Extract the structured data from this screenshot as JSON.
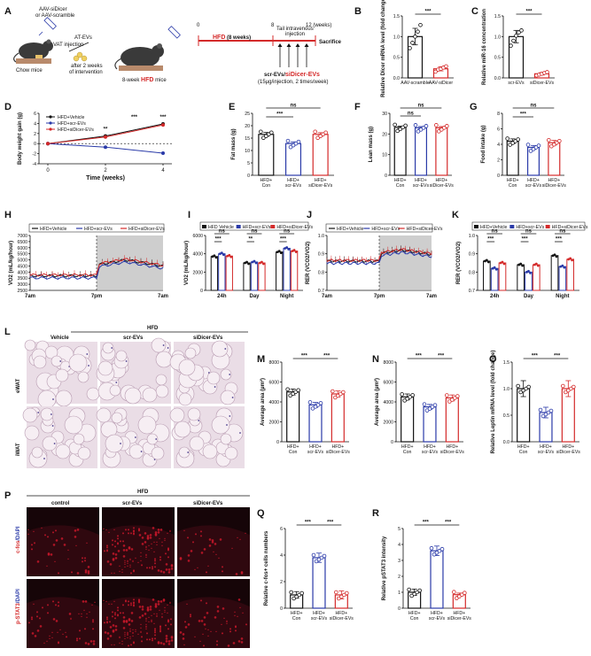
{
  "panel_letters": [
    "A",
    "B",
    "C",
    "D",
    "E",
    "F",
    "G",
    "H",
    "I",
    "J",
    "K",
    "L",
    "M",
    "N",
    "O",
    "P",
    "Q",
    "R"
  ],
  "colors": {
    "black": "#111111",
    "blue": "#2a3aa8",
    "red": "#d42a2a",
    "grey": "#bdbdbd",
    "tissue": "#eadde6",
    "fluor_red": "#c8182a"
  },
  "panel_a": {
    "vector_text": "AAV-siDicer or AAV-scramble",
    "vector_line1": "AAV-siDicer",
    "vector_line2": "or AAV-scramble",
    "vat_injection": "VAT injection",
    "at_evs": "AT-EVs",
    "after_weeks_line1": "after 2 weeks",
    "after_weeks_line2": "of intervention",
    "chow_mice": "Chow mice",
    "hfd_mice_prefix": "8-week ",
    "hfd_mice_hfd": "HFD",
    "hfd_mice_suffix": " mice",
    "timeline_start": "0",
    "timeline_mid": "8",
    "timeline_end": "12 (weeks)",
    "hfd_label_hfd": "HFD",
    "hfd_label_rest": " (8 weeks)",
    "tail_line1": "Tail intravenous",
    "tail_line2": "injection",
    "sacrifice": "Sacrifice",
    "groups_black": "scr-EVs/",
    "groups_red": "siDicer-EVs",
    "dose": "(15µg/injection, 2 times/week)"
  },
  "panel_p": {
    "hfd_title": "HFD",
    "col_labels": [
      "control",
      "scr-EVs",
      "siDicer-EVs"
    ],
    "row1_black": "c-fos",
    "row1_blue": "/DAPI",
    "row2_black": "p-STAT3",
    "row2_blue": "/DAPI"
  },
  "panel_l": {
    "hfd_title": "HFD",
    "col_labels": [
      "Vehicle",
      "scr-EVs",
      "siDicer-EVs"
    ],
    "row_labels": [
      "eWAT",
      "iWAT"
    ]
  },
  "chart_data": [
    {
      "panel": "B",
      "type": "bar",
      "ylabel": "Relative Dicer mRNA level (fold change)",
      "categories": [
        "AAV-scramble",
        "AAV-siDicer"
      ],
      "values": [
        1.0,
        0.22
      ],
      "errors": [
        0.2,
        0.05
      ],
      "points": [
        [
          0.72,
          0.85,
          1.0,
          1.12,
          1.28
        ],
        [
          0.15,
          0.2,
          0.22,
          0.25,
          0.28
        ]
      ],
      "colors": [
        "#111111",
        "#d42a2a"
      ],
      "ylim": [
        0,
        1.5
      ],
      "yticks": [
        "0.0",
        "0.5",
        "1.0",
        "1.5"
      ],
      "significance": [
        "***"
      ]
    },
    {
      "panel": "C",
      "type": "bar",
      "ylabel": "Relative miR-16 concentration",
      "categories": [
        "scr-EVs",
        "siDicer-EVs"
      ],
      "values": [
        1.0,
        0.1
      ],
      "errors": [
        0.15,
        0.03
      ],
      "points": [
        [
          0.78,
          0.9,
          1.02,
          1.1,
          1.15
        ],
        [
          0.06,
          0.08,
          0.1,
          0.12,
          0.14
        ]
      ],
      "colors": [
        "#111111",
        "#d42a2a"
      ],
      "ylim": [
        0,
        1.5
      ],
      "yticks": [
        "0.0",
        "0.5",
        "1.0",
        "1.5"
      ],
      "significance": [
        "***"
      ]
    },
    {
      "panel": "D",
      "type": "line",
      "xlabel": "Time (weeks)",
      "ylabel": "Body weight gain (g)",
      "x": [
        0,
        2,
        4
      ],
      "xticks": [
        "0",
        "2",
        "4"
      ],
      "ylim": [
        -4,
        6
      ],
      "yticks": [
        "-4",
        "-2",
        "0",
        "2",
        "4",
        "6"
      ],
      "series": [
        {
          "name": "HFD+Vehicle",
          "values": [
            0,
            1.5,
            3.9
          ],
          "color": "#111111"
        },
        {
          "name": "HFD+scr-EVs",
          "values": [
            0,
            -0.7,
            -1.9
          ],
          "color": "#2a3aa8"
        },
        {
          "name": "HFD+siDicer-EVs",
          "values": [
            0,
            1.3,
            3.7
          ],
          "color": "#d42a2a"
        }
      ],
      "significance": [
        "**",
        "***",
        "***"
      ]
    },
    {
      "panel": "E",
      "type": "bar",
      "ylabel": "Fat mass (g)",
      "categories": [
        "HFD+ Con",
        "HFD+ scr-EVs",
        "HFD+ siDicer-EVs"
      ],
      "values": [
        16.5,
        12.8,
        16.5
      ],
      "errors": [
        0.8,
        0.7,
        0.7
      ],
      "colors": [
        "#111111",
        "#2a3aa8",
        "#d42a2a"
      ],
      "ylim": [
        0,
        25
      ],
      "yticks": [
        "0",
        "5",
        "10",
        "15",
        "20",
        "25"
      ],
      "significance": [
        "***",
        "***",
        "ns"
      ]
    },
    {
      "panel": "F",
      "type": "bar",
      "ylabel": "Lean mass (g)",
      "categories": [
        "HFD+ Con",
        "HFD+ scr-EVs",
        "HFD+ siDicer-EVs"
      ],
      "values": [
        23.2,
        23.0,
        23.0
      ],
      "errors": [
        0.6,
        0.6,
        0.6
      ],
      "colors": [
        "#111111",
        "#2a3aa8",
        "#d42a2a"
      ],
      "ylim": [
        0,
        30
      ],
      "yticks": [
        "0",
        "10",
        "20",
        "30"
      ],
      "significance": [
        "ns",
        "ns"
      ]
    },
    {
      "panel": "G",
      "type": "bar",
      "ylabel": "Food intake (g)",
      "categories": [
        "HFD+ Con",
        "HFD+ scr-EVs",
        "HFD+ siDicer-EVs"
      ],
      "values": [
        4.4,
        3.6,
        4.2
      ],
      "errors": [
        0.3,
        0.25,
        0.3
      ],
      "colors": [
        "#111111",
        "#2a3aa8",
        "#d42a2a"
      ],
      "ylim": [
        0,
        8
      ],
      "yticks": [
        "0",
        "2",
        "4",
        "6",
        "8"
      ],
      "significance": [
        "***",
        "***",
        "ns"
      ]
    },
    {
      "panel": "H",
      "type": "line",
      "ylabel": "VO2 (mL/kg/hour)",
      "xticks": [
        "7am",
        "7pm",
        "7am"
      ],
      "ylim": [
        2500,
        7000
      ],
      "yticks": [
        "2500",
        "3000",
        "3500",
        "4000",
        "4500",
        "5000",
        "5500",
        "6000",
        "6500",
        "7000"
      ],
      "dark_phase": "7pm-7am",
      "series": [
        {
          "name": "HFD+Vehicle",
          "color": "#111111"
        },
        {
          "name": "HFD+scr-EVs",
          "color": "#2a3aa8"
        },
        {
          "name": "HFD+siDicer-EVs",
          "color": "#d42a2a"
        }
      ]
    },
    {
      "panel": "I",
      "type": "bar",
      "ylabel": "VO2 (mL/kg/hour)",
      "categories": [
        "24h",
        "Day",
        "Night"
      ],
      "series": [
        {
          "name": "HFD Vehicle",
          "values": [
            3700,
            3000,
            4200
          ],
          "color": "#111111"
        },
        {
          "name": "HFD+scr-EVs",
          "values": [
            4000,
            3100,
            4600
          ],
          "color": "#2a3aa8"
        },
        {
          "name": "HFD+siDicer-EVs",
          "values": [
            3750,
            3000,
            4300
          ],
          "color": "#d42a2a"
        }
      ],
      "ylim": [
        0,
        6000
      ],
      "yticks": [
        "0",
        "2000",
        "4000",
        "6000"
      ],
      "significance": [
        "***",
        "ns",
        "**",
        "ns",
        "***",
        "ns"
      ]
    },
    {
      "panel": "J",
      "type": "line",
      "ylabel": "RER (VCO2/VO2)",
      "xticks": [
        "7am",
        "7pm",
        "7am"
      ],
      "ylim": [
        0.7,
        1.0
      ],
      "yticks": [
        "0.7",
        "0.8",
        "0.9",
        "1.0"
      ],
      "dark_phase": "7pm-7am",
      "series": [
        {
          "name": "HFD+Vehicle",
          "color": "#111111"
        },
        {
          "name": "HFD+scr-EVs",
          "color": "#2a3aa8"
        },
        {
          "name": "HFD+siDicer-EVs",
          "color": "#d42a2a"
        }
      ]
    },
    {
      "panel": "K",
      "type": "bar",
      "ylabel": "RER (VCO2/VO2)",
      "categories": [
        "24h",
        "Day",
        "Night"
      ],
      "series": [
        {
          "name": "HFD+Vehicle",
          "values": [
            0.86,
            0.84,
            0.89
          ],
          "color": "#111111"
        },
        {
          "name": "HFD+scr-EVs",
          "values": [
            0.82,
            0.8,
            0.83
          ],
          "color": "#2a3aa8"
        },
        {
          "name": "HFD+siDicer-EVs",
          "values": [
            0.85,
            0.84,
            0.87
          ],
          "color": "#d42a2a"
        }
      ],
      "ylim": [
        0.7,
        1.0
      ],
      "yticks": [
        "0.7",
        "0.8",
        "0.9",
        "1.0"
      ],
      "significance": [
        "***",
        "ns",
        "***",
        "ns",
        "***",
        "ns"
      ]
    },
    {
      "panel": "M",
      "type": "bar",
      "ylabel": "Average area (µm²)",
      "categories": [
        "HFD+ Con",
        "HFD+ scr-EVs",
        "HFD+ siDicer-EVs"
      ],
      "values": [
        5000,
        3700,
        4800
      ],
      "errors": [
        300,
        250,
        300
      ],
      "colors": [
        "#111111",
        "#2a3aa8",
        "#d42a2a"
      ],
      "ylim": [
        0,
        8000
      ],
      "yticks": [
        "0",
        "2000",
        "4000",
        "6000",
        "8000"
      ],
      "significance": [
        "***",
        "***"
      ]
    },
    {
      "panel": "N",
      "type": "bar",
      "ylabel": "Average area (µm²)",
      "categories": [
        "HFD+ Con",
        "HFD+ scr-EVs",
        "HFD+ siDicer-EVs"
      ],
      "values": [
        4500,
        3500,
        4400
      ],
      "errors": [
        300,
        250,
        300
      ],
      "colors": [
        "#111111",
        "#2a3aa8",
        "#d42a2a"
      ],
      "ylim": [
        0,
        8000
      ],
      "yticks": [
        "0",
        "2000",
        "4000",
        "6000",
        "8000"
      ],
      "significance": [
        "***",
        "***"
      ]
    },
    {
      "panel": "O",
      "type": "bar",
      "ylabel": "Relative Leptin mRNA level (fold change)",
      "categories": [
        "HFD+ Con",
        "HFD+ scr-EVs",
        "HFD+ siDicer-EVs"
      ],
      "values": [
        1.0,
        0.55,
        1.0
      ],
      "errors": [
        0.15,
        0.1,
        0.15
      ],
      "colors": [
        "#111111",
        "#2a3aa8",
        "#d42a2a"
      ],
      "ylim": [
        0,
        1.5
      ],
      "yticks": [
        "0.0",
        "0.5",
        "1.0",
        "1.5"
      ],
      "significance": [
        "***",
        "***"
      ]
    },
    {
      "panel": "Q",
      "type": "bar",
      "ylabel": "Relative c-fos+ cells numbers",
      "categories": [
        "HFD+ Con",
        "HFD+ scr-EVs",
        "HFD+ siDicer-EVs"
      ],
      "values": [
        1.0,
        3.8,
        1.0
      ],
      "errors": [
        0.25,
        0.35,
        0.3
      ],
      "colors": [
        "#111111",
        "#2a3aa8",
        "#d42a2a"
      ],
      "ylim": [
        0,
        6
      ],
      "yticks": [
        "0",
        "2",
        "4",
        "6"
      ],
      "significance": [
        "***",
        "***"
      ]
    },
    {
      "panel": "R",
      "type": "bar",
      "ylabel": "Relative pSTAT3 intensity",
      "categories": [
        "HFD+ Con",
        "HFD+ scr-EVs",
        "HFD+ siDicer-EVs"
      ],
      "values": [
        1.0,
        3.6,
        0.85
      ],
      "errors": [
        0.2,
        0.3,
        0.1
      ],
      "colors": [
        "#111111",
        "#2a3aa8",
        "#d42a2a"
      ],
      "ylim": [
        0,
        5
      ],
      "yticks": [
        "0",
        "1",
        "2",
        "3",
        "4",
        "5"
      ],
      "significance": [
        "***",
        "***"
      ]
    }
  ]
}
